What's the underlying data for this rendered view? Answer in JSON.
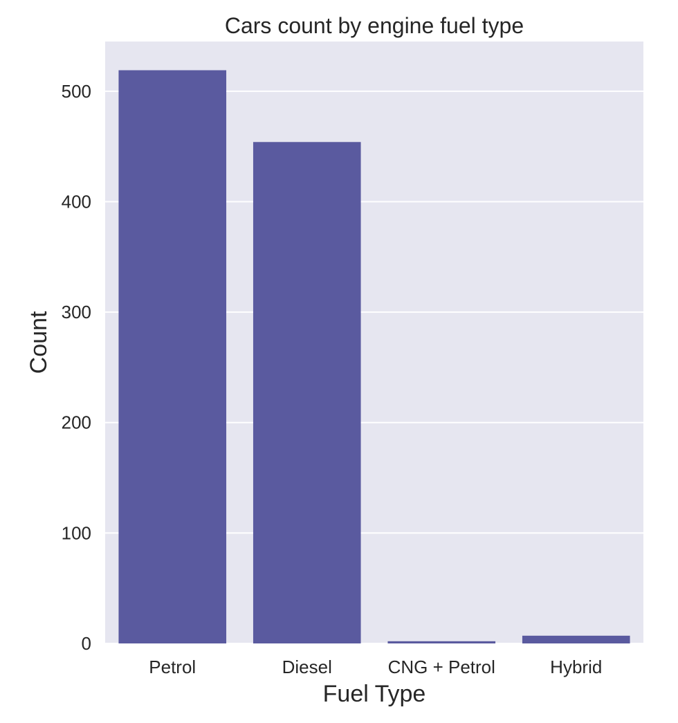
{
  "chart_data": {
    "type": "bar",
    "title": "Cars count by engine fuel type",
    "xlabel": "Fuel Type",
    "ylabel": "Count",
    "categories": [
      "Petrol",
      "Diesel",
      "CNG + Petrol",
      "Hybrid"
    ],
    "values": [
      519,
      454,
      2,
      7
    ],
    "ylim": [
      0,
      545
    ],
    "yticks": [
      0,
      100,
      200,
      300,
      400,
      500
    ],
    "grid": true,
    "colors": {
      "bar": "#5a5a9f",
      "plot_background": "#e6e6f0",
      "gridline": "#ffffff"
    }
  }
}
